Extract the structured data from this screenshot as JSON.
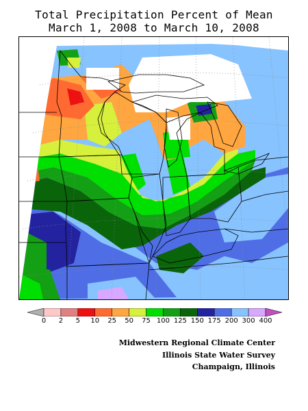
{
  "title": {
    "line1": "Total Precipitation Percent of Mean",
    "line2": "March 1, 2008 to March 10, 2008"
  },
  "legend": {
    "bins": [
      {
        "label": "0",
        "color": "#b0b0b0"
      },
      {
        "label": "2",
        "color": "#ffc8c8"
      },
      {
        "label": "5",
        "color": "#e08080"
      },
      {
        "label": "10",
        "color": "#ee1111"
      },
      {
        "label": "25",
        "color": "#ff6a33"
      },
      {
        "label": "50",
        "color": "#ffa640"
      },
      {
        "label": "75",
        "color": "#d7f03c"
      },
      {
        "label": "100",
        "color": "#00e000"
      },
      {
        "label": "125",
        "color": "#14a014"
      },
      {
        "label": "150",
        "color": "#0a640a"
      },
      {
        "label": "175",
        "color": "#2323a0"
      },
      {
        "label": "200",
        "color": "#4f6ee6"
      },
      {
        "label": "300",
        "color": "#87c3ff"
      },
      {
        "label": "400",
        "color": "#d8a8ff"
      },
      {
        "label": "",
        "color": "#c050c0"
      }
    ]
  },
  "credits": {
    "line1": "Midwestern Regional Climate Center",
    "line2": "Illinois State Water Survey",
    "line3": "Champaign, Illinois"
  }
}
